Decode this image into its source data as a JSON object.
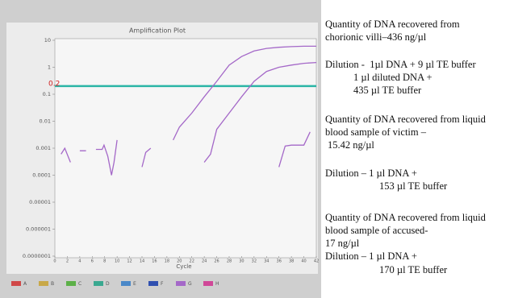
{
  "chart_data": {
    "type": "line",
    "title": "Amplification Plot",
    "x_label": "Cycle",
    "y_scale": "log",
    "xlim": [
      0,
      42
    ],
    "ylim": [
      1e-07,
      10
    ],
    "xticks": [
      0,
      2,
      4,
      6,
      8,
      10,
      12,
      14,
      16,
      18,
      20,
      22,
      24,
      26,
      28,
      30,
      32,
      34,
      36,
      38,
      40,
      42
    ],
    "yticks": [
      10,
      1,
      0.1,
      0.01,
      0.001,
      0.0001,
      1e-05,
      1e-06,
      {
        "value": 1e-07,
        "label": "0.0000001"
      }
    ],
    "threshold": {
      "value": 0.2,
      "label": "0.2",
      "color": "#2bb5a6"
    },
    "series": [
      {
        "color": "#a468c8",
        "x": [
          1,
          1.6,
          2.5,
          3,
          4,
          5,
          5.5,
          6.6,
          7.6,
          7.9,
          8.5,
          9.1,
          9.5,
          10,
          11,
          14,
          14.6,
          15.4
        ],
        "values": [
          0.0006,
          0.001,
          0.0003,
          null,
          0.0008,
          0.0008,
          null,
          0.0009,
          0.0009,
          0.0013,
          0.0005,
          0.0001,
          0.0003,
          0.002,
          null,
          0.0002,
          0.0007,
          0.001
        ]
      },
      {
        "color": "#a468c8",
        "x": [
          19,
          20,
          22,
          24,
          26,
          28,
          30,
          32,
          34,
          36,
          38,
          40,
          42
        ],
        "values": [
          0.002,
          0.006,
          0.02,
          0.08,
          0.3,
          1.2,
          2.5,
          4,
          5,
          5.5,
          5.8,
          6,
          6
        ]
      },
      {
        "color": "#a468c8",
        "x": [
          24,
          25,
          26,
          28,
          30,
          32,
          34,
          36,
          38,
          40,
          42
        ],
        "values": [
          0.0003,
          0.0006,
          0.005,
          0.02,
          0.08,
          0.3,
          0.7,
          1,
          1.2,
          1.4,
          1.5
        ]
      },
      {
        "color": "#a468c8",
        "x": [
          36,
          37,
          38,
          40,
          41
        ],
        "values": [
          0.0002,
          0.0012,
          0.0013,
          0.0013,
          0.004
        ]
      }
    ],
    "legend": [
      {
        "label": "A",
        "color": "#d04848"
      },
      {
        "label": "B",
        "color": "#c8a848"
      },
      {
        "label": "C",
        "color": "#5cb048"
      },
      {
        "label": "D",
        "color": "#3aa890"
      },
      {
        "label": "E",
        "color": "#4a88c8"
      },
      {
        "label": "F",
        "color": "#3050b0"
      },
      {
        "label": "G",
        "color": "#a468c8"
      },
      {
        "label": "H",
        "color": "#d04898"
      }
    ]
  },
  "notes": [
    [
      "Quantity of DNA recovered from",
      "chorionic villi–436 ng/µl"
    ],
    [
      "Dilution -  1µl DNA + 9 µl TE buffer",
      "1 µl diluted DNA +",
      "435 µl TE buffer"
    ],
    [
      "Quantity of DNA recovered from liquid",
      "blood sample of victim –",
      "15.42 ng/µl"
    ],
    [
      "Dilution – 1 µl DNA +",
      "153 µl TE buffer"
    ],
    [
      "Quantity of DNA recovered from liquid",
      "blood sample of accused-",
      "17 ng/µl",
      "Dilution – 1 µl DNA +",
      "170 µl TE buffer"
    ]
  ]
}
